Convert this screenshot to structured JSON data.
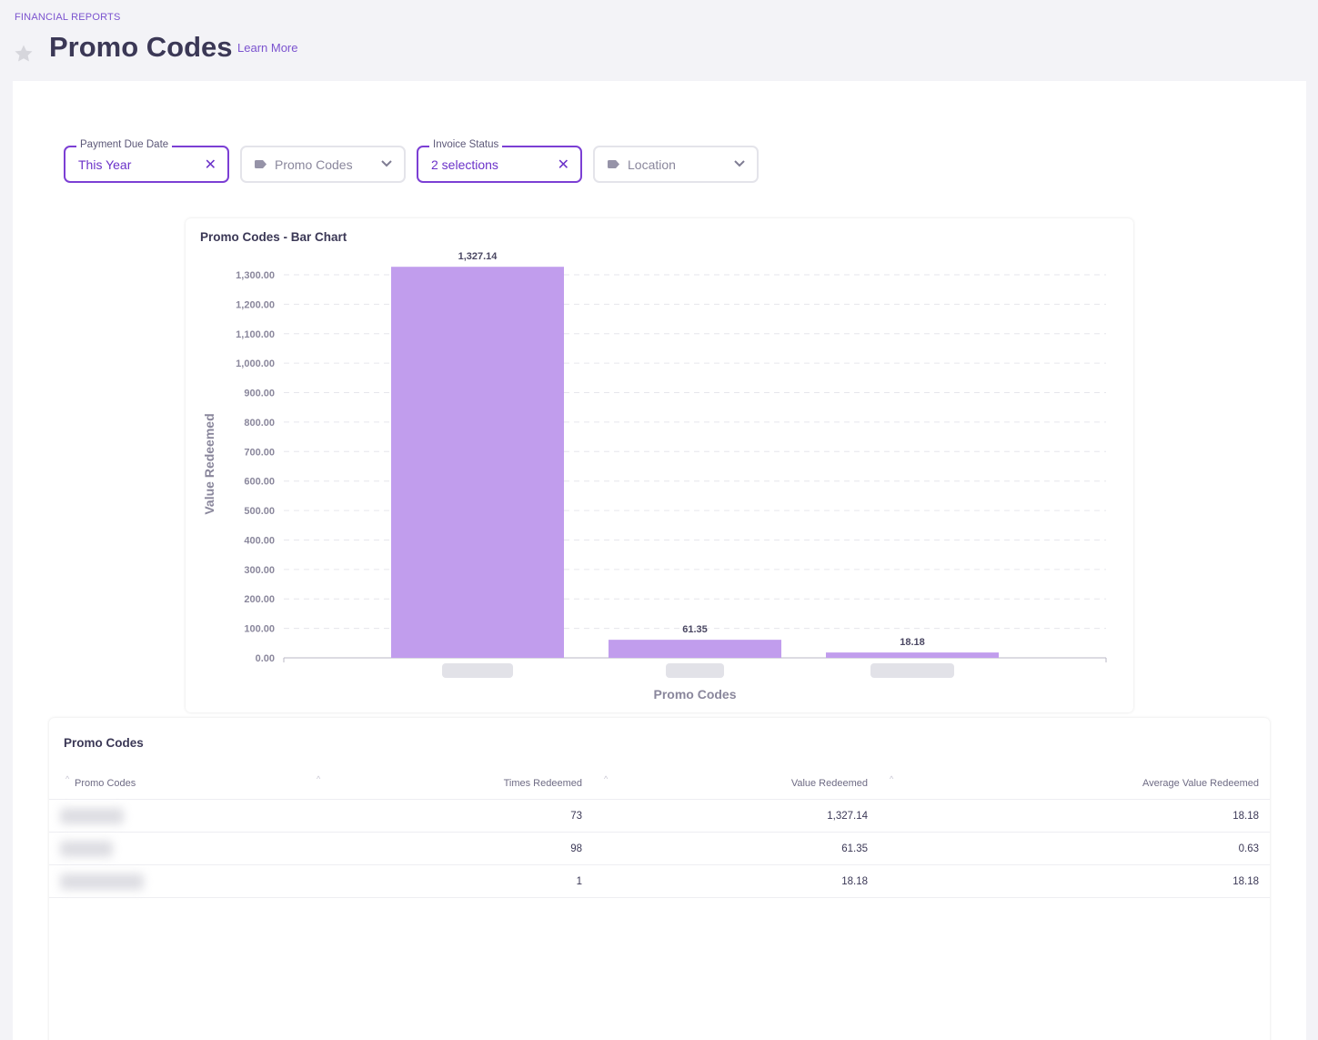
{
  "header": {
    "breadcrumb": "FINANCIAL REPORTS",
    "title": "Promo Codes",
    "learn_more": "Learn More"
  },
  "filters": {
    "payment_due_date": {
      "label": "Payment Due Date",
      "value": "This Year"
    },
    "promo_codes": {
      "placeholder": "Promo Codes"
    },
    "invoice_status": {
      "label": "Invoice Status",
      "value": "2 selections"
    },
    "location": {
      "placeholder": "Location"
    },
    "clear_glyph": "✕",
    "accent_color": "#7c3fd4"
  },
  "chart": {
    "card_title": "Promo Codes - Bar Chart"
  },
  "chart_data": {
    "type": "bar",
    "title": "Promo Codes - Bar Chart",
    "xlabel": "Promo Codes",
    "ylabel": "Value Redeemed",
    "categories": [
      "",
      "",
      ""
    ],
    "values": [
      1327.14,
      61.35,
      18.18
    ],
    "data_labels": [
      "1,327.14",
      "61.35",
      "18.18"
    ],
    "ylim": [
      0,
      1300
    ],
    "yticks": [
      0,
      100,
      200,
      300,
      400,
      500,
      600,
      700,
      800,
      900,
      1000,
      1100,
      1200,
      1300
    ],
    "ytick_labels": [
      "0.00",
      "100.00",
      "200.00",
      "300.00",
      "400.00",
      "500.00",
      "600.00",
      "700.00",
      "800.00",
      "900.00",
      "1,000.00",
      "1,100.00",
      "1,200.00",
      "1,300.00"
    ],
    "grid": true,
    "bar_color": "#c19ded"
  },
  "table": {
    "title": "Promo Codes",
    "columns": [
      "Promo Codes",
      "Times Redeemed",
      "Value Redeemed",
      "Average Value Redeemed"
    ],
    "rows": [
      {
        "times_redeemed": "73",
        "value_redeemed": "1,327.14",
        "average_value_redeemed": "18.18"
      },
      {
        "times_redeemed": "98",
        "value_redeemed": "61.35",
        "average_value_redeemed": "0.63"
      },
      {
        "times_redeemed": "1",
        "value_redeemed": "18.18",
        "average_value_redeemed": "18.18"
      }
    ]
  }
}
